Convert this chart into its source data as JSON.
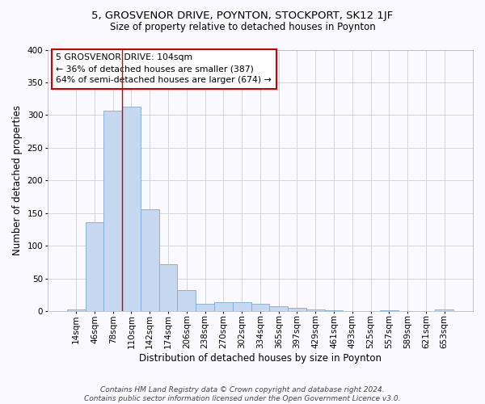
{
  "title1": "5, GROSVENOR DRIVE, POYNTON, STOCKPORT, SK12 1JF",
  "title2": "Size of property relative to detached houses in Poynton",
  "xlabel": "Distribution of detached houses by size in Poynton",
  "ylabel": "Number of detached properties",
  "bar_labels": [
    "14sqm",
    "46sqm",
    "78sqm",
    "110sqm",
    "142sqm",
    "174sqm",
    "206sqm",
    "238sqm",
    "270sqm",
    "302sqm",
    "334sqm",
    "365sqm",
    "397sqm",
    "429sqm",
    "461sqm",
    "493sqm",
    "525sqm",
    "557sqm",
    "589sqm",
    "621sqm",
    "653sqm"
  ],
  "bar_values": [
    3,
    136,
    307,
    313,
    156,
    72,
    32,
    11,
    14,
    14,
    11,
    8,
    5,
    3,
    1,
    0,
    0,
    2,
    0,
    0,
    3
  ],
  "bar_color": "#c5d8f0",
  "bar_edge_color": "#7aacd4",
  "grid_color": "#d0d0d0",
  "annotation_text_line1": "5 GROSVENOR DRIVE: 104sqm",
  "annotation_text_line2": "← 36% of detached houses are smaller (387)",
  "annotation_text_line3": "64% of semi-detached houses are larger (674) →",
  "annotation_box_color": "#ffffff",
  "annotation_box_edge": "#cc0000",
  "vline_color": "#cc0000",
  "vline_x": 2.5,
  "footnote": "Contains HM Land Registry data © Crown copyright and database right 2024.\nContains public sector information licensed under the Open Government Licence v3.0.",
  "ylim": [
    0,
    400
  ],
  "yticks": [
    0,
    50,
    100,
    150,
    200,
    250,
    300,
    350,
    400
  ],
  "background_color": "#f9f9ff",
  "title1_fontsize": 9.5,
  "title2_fontsize": 8.5,
  "xlabel_fontsize": 8.5,
  "ylabel_fontsize": 8.5,
  "tick_fontsize": 7.5,
  "footnote_fontsize": 6.5
}
